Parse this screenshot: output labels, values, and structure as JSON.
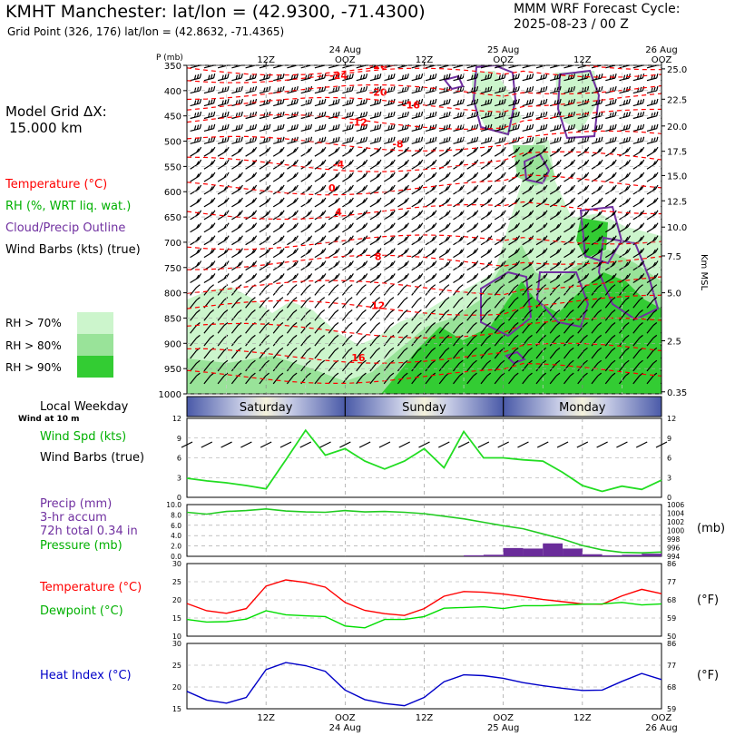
{
  "header": {
    "title": "KMHT Manchester:  lat/lon = (42.9300, -71.4300)",
    "grid_point": "Grid Point (326, 176) lat/lon = (42.8632, -71.4365)",
    "cycle_line1": "MMM WRF Forecast Cycle:",
    "cycle_line2": "2025-08-23 / 00  Z"
  },
  "side": {
    "model_grid_line1": "Model Grid ΔX:",
    "model_grid_line2": "15.000 km",
    "legend_temperature": "Temperature (°C)",
    "legend_rh": "RH (%, WRT liq. wat.)",
    "legend_cloud": "Cloud/Precip Outline",
    "legend_wind": "Wind Barbs (kts) (true)",
    "rh_70": "RH > 70%",
    "rh_80": "RH > 80%",
    "rh_90": "RH > 90%",
    "local_weekday": "Local Weekday",
    "wind_at_10m": "Wind at 10 m",
    "wind_spd": "Wind Spd (kts)",
    "wind_barbs": "Wind Barbs (true)",
    "precip_1": "Precip (mm)",
    "precip_2": "3-hr accum",
    "precip_3": "72h total 0.34 in",
    "pressure": "Pressure (mb)",
    "pressure_unit": "(mb)",
    "temperature": "Temperature (°C)",
    "dewpoint": "Dewpoint (°C)",
    "degF_1": "(°F)",
    "heat_index": "Heat Index (°C)",
    "degF_2": "(°F)",
    "p_axis_label": "P (mb)",
    "km_axis_label": "Km MSL"
  },
  "colors": {
    "temperature": "#ff0000",
    "dewpoint": "#00dd00",
    "wind": "#22dd22",
    "precip": "#6a2c9a",
    "pressure": "#22cc22",
    "heat_index": "#0000c8",
    "cloud": "#7030a0",
    "rh70": "#ccf5cc",
    "rh80": "#99e399",
    "rh90": "#33cc33"
  },
  "chart_data": [
    {
      "type": "heatmap",
      "name": "cross-section",
      "x_top_labels": [
        {
          "h": 12,
          "label": "12Z"
        },
        {
          "h": 24,
          "label": "OOZ",
          "date": "24 Aug"
        },
        {
          "h": 36,
          "label": "12Z"
        },
        {
          "h": 48,
          "label": "OOZ",
          "date": "25 Aug"
        },
        {
          "h": 60,
          "label": "12Z"
        },
        {
          "h": 72,
          "label": "OOZ",
          "date": "26 Aug"
        }
      ],
      "pressure_ticks": [
        350,
        400,
        450,
        500,
        550,
        600,
        650,
        700,
        750,
        800,
        850,
        900,
        950,
        1000
      ],
      "km_ticks": [
        25.0,
        22.5,
        20.0,
        17.5,
        15.0,
        12.5,
        10.0,
        7.5,
        5.0,
        2.5,
        0.35
      ],
      "km_tick_labels": [
        "25.0",
        "22.5",
        "20.0",
        "17.5",
        "15.0",
        "12.5",
        "10.0",
        "7.5",
        "5.0",
        "2.5",
        "0.35"
      ],
      "ylim": [
        350,
        1000
      ],
      "xlim": [
        0,
        72
      ],
      "temp_contour_labels": [
        {
          "label": "-28",
          "h": 29,
          "p": 350
        },
        {
          "label": "-24",
          "h": 23,
          "p": 370
        },
        {
          "label": "-20",
          "h": 29,
          "p": 403
        },
        {
          "label": "-16",
          "h": 34,
          "p": 428
        },
        {
          "label": "-12",
          "h": 26,
          "p": 462
        },
        {
          "label": "-8",
          "h": 32,
          "p": 505
        },
        {
          "label": "-4",
          "h": 23,
          "p": 546
        },
        {
          "label": "0",
          "h": 22,
          "p": 592
        },
        {
          "label": "4",
          "h": 23,
          "p": 640
        },
        {
          "label": "8",
          "h": 29,
          "p": 728
        },
        {
          "label": "12",
          "h": 29,
          "p": 825
        },
        {
          "label": "16",
          "h": 26,
          "p": 928
        }
      ]
    },
    {
      "type": "line",
      "name": "wind-speed",
      "ylabel": "Wind Spd (kts)",
      "ylim": [
        0,
        12
      ],
      "yticks": [
        0,
        3,
        6,
        9,
        12
      ],
      "x": [
        0,
        3,
        6,
        9,
        12,
        15,
        18,
        21,
        24,
        27,
        30,
        33,
        36,
        39,
        42,
        45,
        48,
        51,
        54,
        57,
        60,
        63,
        66,
        69,
        72
      ],
      "values": [
        2.9,
        2.5,
        2.2,
        1.8,
        1.3,
        5.7,
        10.2,
        6.4,
        7.4,
        5.5,
        4.3,
        5.5,
        7.4,
        4.5,
        10.0,
        6.0,
        6.0,
        5.7,
        5.5,
        3.8,
        1.8,
        0.9,
        1.7,
        1.2,
        2.6
      ]
    },
    {
      "type": "bar",
      "name": "precip",
      "ylabel": "Precip (mm)",
      "ylim": [
        0,
        10
      ],
      "yticks": [
        0.0,
        2.0,
        4.0,
        6.0,
        8.0,
        10.0
      ],
      "x": [
        39,
        42,
        45,
        48,
        51,
        54,
        57,
        60,
        63,
        66,
        69,
        72
      ],
      "values": [
        0.0,
        0.0,
        0.2,
        0.3,
        1.6,
        1.5,
        2.5,
        1.5,
        0.4,
        0.2,
        0.3,
        0.5
      ]
    },
    {
      "type": "line",
      "name": "pressure",
      "ylabel": "Pressure (mb)",
      "ylim": [
        994,
        1006
      ],
      "yticks": [
        994,
        996,
        998,
        1000,
        1002,
        1004,
        1006
      ],
      "x": [
        0,
        3,
        6,
        9,
        12,
        15,
        18,
        21,
        24,
        27,
        30,
        33,
        36,
        39,
        42,
        45,
        48,
        51,
        54,
        57,
        60,
        63,
        66,
        69,
        72
      ],
      "values": [
        1004.2,
        1003.8,
        1004.4,
        1004.6,
        1005.0,
        1004.5,
        1004.3,
        1004.2,
        1004.6,
        1004.3,
        1004.4,
        1004.2,
        1003.9,
        1003.3,
        1002.7,
        1001.9,
        1001.1,
        1000.4,
        999.2,
        998.0,
        996.5,
        995.5,
        994.9,
        994.8,
        995.0
      ]
    },
    {
      "type": "line",
      "name": "temperature-dewpoint",
      "ylim": [
        10,
        30
      ],
      "yticks": [
        10,
        15,
        20,
        25,
        30
      ],
      "yticks_right_F": [
        50,
        59,
        68,
        77,
        86
      ],
      "x": [
        0,
        3,
        6,
        9,
        12,
        15,
        18,
        21,
        24,
        27,
        30,
        33,
        36,
        39,
        42,
        45,
        48,
        51,
        54,
        57,
        60,
        63,
        66,
        69,
        72
      ],
      "series": [
        {
          "name": "Temperature (°C)",
          "values": [
            19.0,
            17.0,
            16.3,
            17.6,
            23.8,
            25.5,
            24.8,
            23.5,
            19.3,
            17.1,
            16.2,
            15.7,
            17.6,
            21.0,
            22.3,
            22.1,
            21.6,
            20.9,
            20.1,
            19.5,
            18.9,
            18.8,
            21.1,
            22.9,
            21.7
          ]
        },
        {
          "name": "Dewpoint (°C)",
          "values": [
            14.6,
            13.9,
            14.0,
            14.7,
            17.0,
            15.9,
            15.6,
            15.4,
            12.8,
            12.3,
            14.6,
            14.6,
            15.4,
            17.7,
            17.9,
            18.1,
            17.6,
            18.4,
            18.4,
            18.6,
            18.8,
            18.9,
            19.3,
            18.6,
            18.9
          ]
        }
      ]
    },
    {
      "type": "line",
      "name": "heat-index",
      "ylabel": "Heat Index (°C)",
      "ylim": [
        15,
        30
      ],
      "yticks": [
        15,
        20,
        25,
        30
      ],
      "yticks_right_F": [
        59,
        68,
        77,
        86
      ],
      "x": [
        0,
        3,
        6,
        9,
        12,
        15,
        18,
        21,
        24,
        27,
        30,
        33,
        36,
        39,
        42,
        45,
        48,
        51,
        54,
        57,
        60,
        63,
        66,
        69,
        72
      ],
      "values": [
        19.0,
        17.0,
        16.3,
        17.6,
        24.0,
        25.6,
        24.9,
        23.6,
        19.3,
        17.1,
        16.2,
        15.7,
        17.6,
        21.2,
        22.8,
        22.6,
        22.0,
        21.0,
        20.3,
        19.7,
        19.2,
        19.3,
        21.3,
        23.1,
        21.7
      ]
    }
  ],
  "weekday_bar": {
    "days": [
      {
        "label": "Saturday",
        "from_h": 0,
        "to_h": 24
      },
      {
        "label": "Sunday",
        "from_h": 24,
        "to_h": 48
      },
      {
        "label": "Monday",
        "from_h": 48,
        "to_h": 72
      }
    ]
  },
  "bottom_axis": {
    "labels": [
      {
        "h": 12,
        "label": "12Z"
      },
      {
        "h": 24,
        "label": "OOZ",
        "date": "24 Aug"
      },
      {
        "h": 36,
        "label": "12Z"
      },
      {
        "h": 48,
        "label": "OOZ",
        "date": "25 Aug"
      },
      {
        "h": 60,
        "label": "12Z"
      },
      {
        "h": 72,
        "label": "OOZ",
        "date": "26 Aug"
      }
    ]
  }
}
